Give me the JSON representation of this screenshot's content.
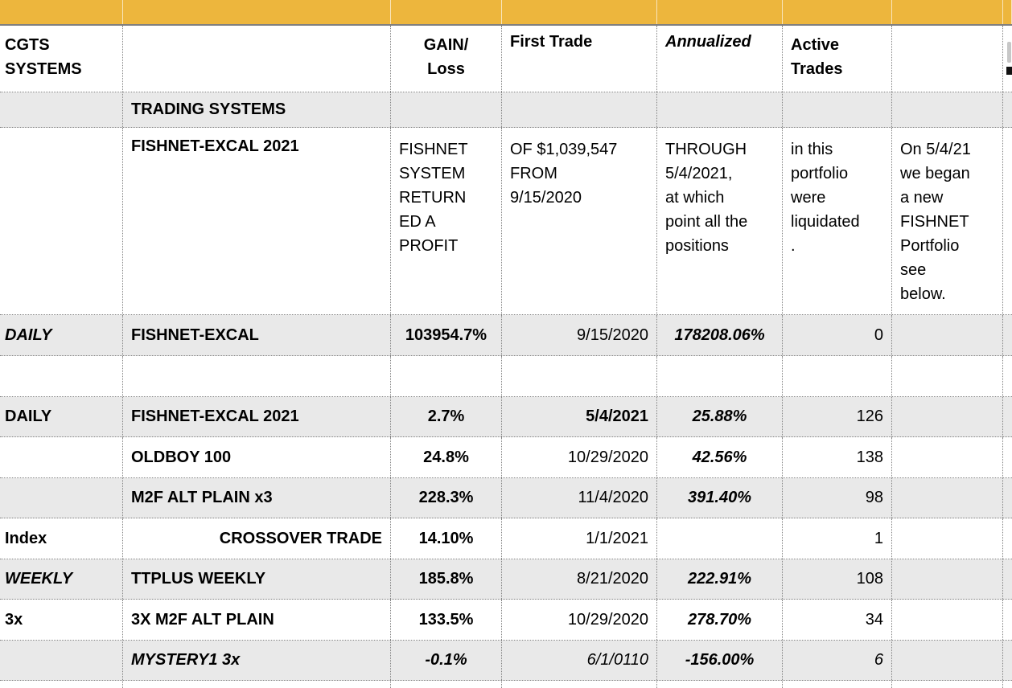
{
  "colors": {
    "band_orange": "#EDB63D",
    "row_gray": "#E9E9E9",
    "grid_dotted": "#828282",
    "band_border": "#7F7F7F"
  },
  "header": {
    "title": "CGTS\nSYSTEMS",
    "gain_loss": "GAIN/\nLoss",
    "first_trade": "First Trade",
    "annualized": "Annualized",
    "active_trades": "Active\nTrades"
  },
  "section": {
    "label": "TRADING SYSTEMS"
  },
  "note_row": {
    "name": "FISHNET-EXCAL 2021",
    "gain": "FISHNET\nSYSTEM\nRETURN\nED A\nPROFIT",
    "first_trade": "OF $1,039,547\nFROM\n9/15/2020",
    "annualized": "THROUGH\n5/4/2021,\nat which\npoint all the\npositions",
    "active": "in this\nportfolio\nwere\nliquidated\n.",
    "note": "On 5/4/21\nwe began\na new\nFISHNET\nPortfolio\nsee\nbelow."
  },
  "rows": {
    "fishnet_excal": {
      "label": "DAILY",
      "name": "FISHNET-EXCAL",
      "gain": "103954.7%",
      "first_trade": "9/15/2020",
      "annualized": "178208.06%",
      "active": "0"
    },
    "fishnet_excal_2021": {
      "label": "DAILY",
      "name": "FISHNET-EXCAL 2021",
      "gain": "2.7%",
      "first_trade": "5/4/2021",
      "annualized": "25.88%",
      "active": "126"
    },
    "oldboy_100": {
      "label": "",
      "name": "OLDBOY 100",
      "gain": "24.8%",
      "first_trade": "10/29/2020",
      "annualized": "42.56%",
      "active": "138"
    },
    "m2f_alt_plain_x3": {
      "label": "",
      "name": "M2F ALT PLAIN x3",
      "gain": "228.3%",
      "first_trade": "11/4/2020",
      "annualized": "391.40%",
      "active": "98"
    },
    "crossover_trade": {
      "label": "Index",
      "name": "CROSSOVER TRADE",
      "gain": "14.10%",
      "first_trade": "1/1/2021",
      "annualized": "",
      "active": "1"
    },
    "ttplus_weekly": {
      "label": "WEEKLY",
      "name": "TTPLUS WEEKLY",
      "gain": "185.8%",
      "first_trade": "8/21/2020",
      "annualized": "222.91%",
      "active": "108"
    },
    "x3_m2f_alt_plain": {
      "label": "3x",
      "name": "3X M2F ALT PLAIN",
      "gain": "133.5%",
      "first_trade": "10/29/2020",
      "annualized": "278.70%",
      "active": "34"
    },
    "mystery1_3x": {
      "label": "",
      "name": "MYSTERY1 3x",
      "gain": "-0.1%",
      "first_trade": "6/1/0110",
      "annualized": "-156.00%",
      "active": "6"
    }
  }
}
